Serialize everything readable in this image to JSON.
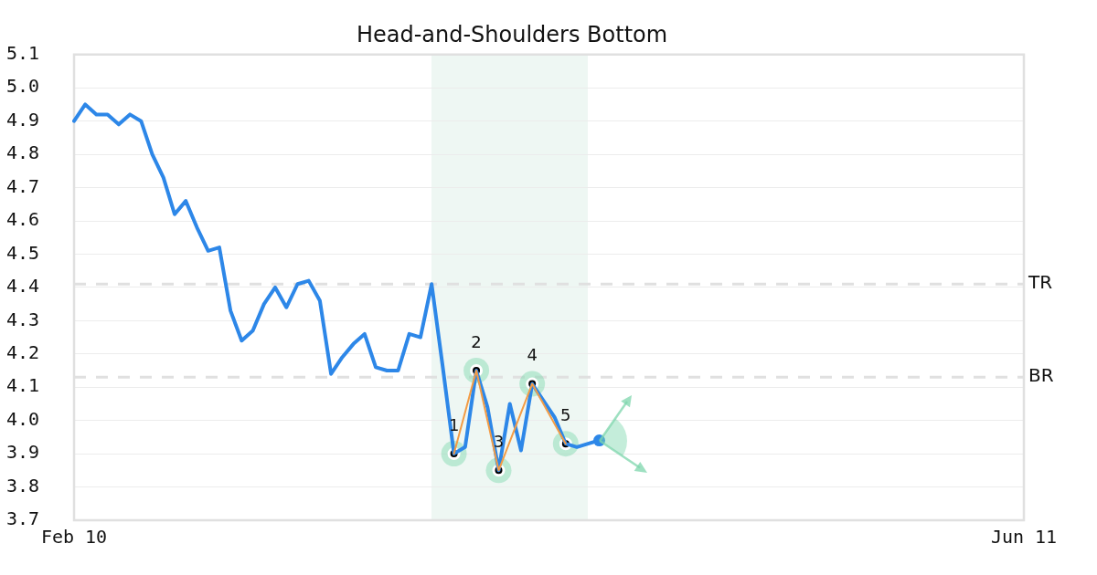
{
  "chart_data": {
    "type": "line",
    "title": "Head-and-Shoulders Bottom",
    "categories": [
      "Feb 10",
      null,
      null,
      null,
      null,
      null,
      null,
      null,
      null,
      null,
      null,
      null,
      null,
      null,
      null,
      null,
      null,
      null,
      null,
      null,
      null,
      null,
      null,
      null,
      null,
      null,
      null,
      null,
      null,
      null,
      null,
      null,
      null,
      null,
      null,
      null,
      null,
      null,
      null,
      null,
      null,
      null,
      null,
      null,
      null,
      null,
      null,
      null,
      null,
      null,
      null,
      null,
      null,
      null,
      null,
      null,
      null,
      null,
      null,
      null,
      null,
      null,
      null,
      null,
      null,
      null,
      null,
      null,
      null,
      null,
      null,
      null,
      null,
      null,
      null,
      null,
      null,
      null,
      null,
      null,
      null,
      null,
      null,
      null,
      null,
      "Jun 11"
    ],
    "ylim": [
      3.7,
      5.1
    ],
    "yticks": [
      3.7,
      3.8,
      3.9,
      {
        "value": 4,
        "label": "4.0"
      },
      4.1,
      4.2,
      4.3,
      4.4,
      4.5,
      4.6,
      4.7,
      4.8,
      4.9,
      {
        "value": 5,
        "label": "5.0"
      },
      5.1
    ],
    "grid": "y",
    "marker": "circle",
    "line_style": "solid",
    "series": [
      {
        "marker": "none",
        "color": "#2d87e8",
        "values": [
          4.9,
          4.95,
          4.92,
          4.92,
          4.89,
          4.92,
          4.9,
          4.8,
          4.73,
          4.62,
          4.66,
          4.58,
          4.51,
          4.52,
          4.33,
          4.24,
          4.27,
          4.35,
          4.4,
          4.34,
          4.41,
          4.42,
          4.36,
          4.14,
          4.19,
          4.23,
          4.26,
          4.16,
          4.15,
          4.15,
          4.26,
          4.25,
          4.41,
          4.16,
          3.9,
          3.92,
          4.15,
          4.04,
          3.85,
          4.05,
          3.91,
          4.11,
          4.06,
          4.01,
          3.93,
          3.92,
          3.93,
          3.94,
          null,
          null,
          null,
          null,
          null,
          null,
          null,
          null,
          null,
          null,
          null,
          null,
          null,
          null,
          null,
          null,
          null,
          null,
          null,
          null,
          null,
          null,
          null,
          null,
          null,
          null,
          null,
          null,
          null,
          null,
          null,
          null,
          null,
          null,
          null,
          null,
          null,
          null
        ]
      },
      {
        "type": "line",
        "color": "#f39c45",
        "values": [
          null,
          null,
          null,
          null,
          null,
          null,
          null,
          null,
          null,
          null,
          null,
          null,
          null,
          null,
          null,
          null,
          null,
          null,
          null,
          null,
          null,
          null,
          null,
          null,
          null,
          null,
          null,
          null,
          null,
          null,
          null,
          null,
          null,
          null,
          3.9,
          null,
          4.15,
          null,
          3.85,
          null,
          null,
          4.11,
          null,
          null,
          3.93,
          null,
          null,
          null,
          null,
          null,
          null,
          null,
          null,
          null,
          null,
          null,
          null,
          null,
          null,
          null,
          null,
          null,
          null,
          null,
          null,
          null,
          null,
          null,
          null,
          null,
          null,
          null,
          null,
          null,
          null,
          null,
          null,
          null,
          null,
          null,
          null,
          null,
          null,
          null,
          null,
          null
        ]
      },
      {
        "type": "scatter",
        "color": "#2d87e8",
        "values": [
          null,
          null,
          null,
          null,
          null,
          null,
          null,
          null,
          null,
          null,
          null,
          null,
          null,
          null,
          null,
          null,
          null,
          null,
          null,
          null,
          null,
          null,
          null,
          null,
          null,
          null,
          null,
          null,
          null,
          null,
          null,
          null,
          null,
          null,
          null,
          null,
          null,
          null,
          null,
          null,
          null,
          null,
          null,
          null,
          null,
          null,
          null,
          3.94,
          null,
          null,
          null,
          null,
          null,
          null,
          null,
          null,
          null,
          null,
          null,
          null,
          null,
          null,
          null,
          null,
          null,
          null,
          null,
          null,
          null,
          null,
          null,
          null,
          null,
          null,
          null,
          null,
          null,
          null,
          null,
          null,
          null,
          null,
          null,
          null,
          null,
          null
        ]
      }
    ],
    "ref_lines": [
      {
        "axis": "y",
        "value": 4.41,
        "label": "TR",
        "color": "#e0e0e0",
        "line_style": "dashed"
      },
      {
        "axis": "y",
        "value": 4.13,
        "label": "BR",
        "color": "#e0e0e0",
        "line_style": "dashed"
      }
    ],
    "annotations": [
      {
        "text": "1",
        "y": 3.9
      },
      {
        "text": "2",
        "y": 4.15
      },
      {
        "text": "3",
        "y": 3.85
      },
      {
        "text": "4",
        "y": 4.11
      },
      {
        "text": "5",
        "y": 3.93
      }
    ]
  }
}
